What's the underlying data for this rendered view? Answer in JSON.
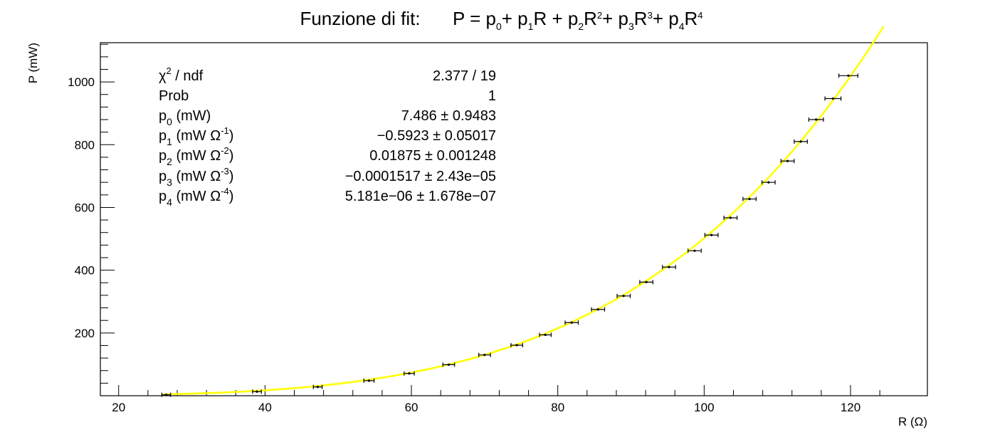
{
  "chart_data": {
    "type": "scatter",
    "title": {
      "prefix": "Funzione di fit:",
      "formula_parts": [
        {
          "t": "P = p",
          "s": ""
        },
        {
          "t": "0",
          "s": "sub"
        },
        {
          "t": "+ p",
          "s": ""
        },
        {
          "t": "1",
          "s": "sub"
        },
        {
          "t": "R + p",
          "s": ""
        },
        {
          "t": "2",
          "s": "sub"
        },
        {
          "t": "R",
          "s": ""
        },
        {
          "t": "2",
          "s": "sup"
        },
        {
          "t": "+ p",
          "s": ""
        },
        {
          "t": "3",
          "s": "sub"
        },
        {
          "t": "R",
          "s": ""
        },
        {
          "t": "3",
          "s": "sup"
        },
        {
          "t": "+ p",
          "s": ""
        },
        {
          "t": "4",
          "s": "sub"
        },
        {
          "t": "R",
          "s": ""
        },
        {
          "t": "4",
          "s": "sup"
        }
      ]
    },
    "xlabel": "R (Ω)",
    "ylabel": "P (mW)",
    "xlim": [
      17.5,
      130.5
    ],
    "ylim": [
      0,
      1125
    ],
    "x_ticks": [
      "20",
      "40",
      "60",
      "80",
      "100",
      "120"
    ],
    "y_ticks": [
      "200",
      "400",
      "600",
      "800",
      "1000"
    ],
    "series": [
      {
        "type": "points",
        "x": [
          26.5,
          38.9,
          47.2,
          54.2,
          59.7,
          65.1,
          70.0,
          74.4,
          78.3,
          81.9,
          85.5,
          89.0,
          92.1,
          95.2,
          98.7,
          101.0,
          103.6,
          106.2,
          108.8,
          111.4,
          113.2,
          115.3,
          117.6,
          119.7
        ],
        "y": [
          3,
          13,
          28,
          48,
          71,
          99,
          130,
          161,
          194,
          233,
          275,
          318,
          362,
          410,
          462,
          512,
          567,
          627,
          680,
          748,
          810,
          880,
          947,
          1020
        ],
        "x_err": [
          0.6,
          0.6,
          0.6,
          0.7,
          0.7,
          0.8,
          0.8,
          0.8,
          0.8,
          0.9,
          0.9,
          0.9,
          0.9,
          0.9,
          0.9,
          0.9,
          0.9,
          0.9,
          0.9,
          0.9,
          0.9,
          1.0,
          1.1,
          1.3
        ],
        "y_err": [
          1,
          2,
          3,
          3,
          4,
          4,
          4,
          4,
          4,
          5,
          5,
          5,
          5,
          5,
          5,
          5,
          5,
          5,
          6,
          6,
          7,
          8,
          9,
          10
        ]
      },
      {
        "type": "fit",
        "color": "#ffff00",
        "function": "polynomial",
        "coefficients": [
          7.486,
          -0.5923,
          0.01875,
          -0.0001517,
          5.181e-06
        ],
        "x_range": [
          26,
          124.5
        ]
      }
    ],
    "stats_box": {
      "rows": [
        {
          "label": [
            {
              "t": "χ",
              "s": ""
            },
            {
              "t": "2",
              "s": "sup"
            },
            {
              "t": " / ndf",
              "s": ""
            }
          ],
          "value": "2.377 / 19"
        },
        {
          "label": [
            {
              "t": "Prob",
              "s": ""
            }
          ],
          "value": "1"
        },
        {
          "label": [
            {
              "t": "p",
              "s": ""
            },
            {
              "t": "0",
              "s": "sub"
            },
            {
              "t": " (mW)",
              "s": ""
            }
          ],
          "value": "7.486 ± 0.9483"
        },
        {
          "label": [
            {
              "t": "p",
              "s": ""
            },
            {
              "t": "1",
              "s": "sub"
            },
            {
              "t": " (mW Ω",
              "s": ""
            },
            {
              "t": "-1",
              "s": "sup"
            },
            {
              "t": ")",
              "s": ""
            }
          ],
          "value": "−0.5923 ± 0.05017"
        },
        {
          "label": [
            {
              "t": "p",
              "s": ""
            },
            {
              "t": "2",
              "s": "sub"
            },
            {
              "t": " (mW Ω",
              "s": ""
            },
            {
              "t": "-2",
              "s": "sup"
            },
            {
              "t": ")",
              "s": ""
            }
          ],
          "value": "0.01875 ± 0.001248"
        },
        {
          "label": [
            {
              "t": "p",
              "s": ""
            },
            {
              "t": "3",
              "s": "sub"
            },
            {
              "t": " (mW Ω",
              "s": ""
            },
            {
              "t": "-3",
              "s": "sup"
            },
            {
              "t": ")",
              "s": ""
            }
          ],
          "value": "−0.0001517 ± 2.43e−05"
        },
        {
          "label": [
            {
              "t": "p",
              "s": ""
            },
            {
              "t": "4",
              "s": "sub"
            },
            {
              "t": " (mW Ω",
              "s": ""
            },
            {
              "t": "-4",
              "s": "sup"
            },
            {
              "t": ")",
              "s": ""
            }
          ],
          "value": "5.181e−06 ± 1.678e−07"
        }
      ]
    },
    "grid": false,
    "legend": "top-left"
  }
}
